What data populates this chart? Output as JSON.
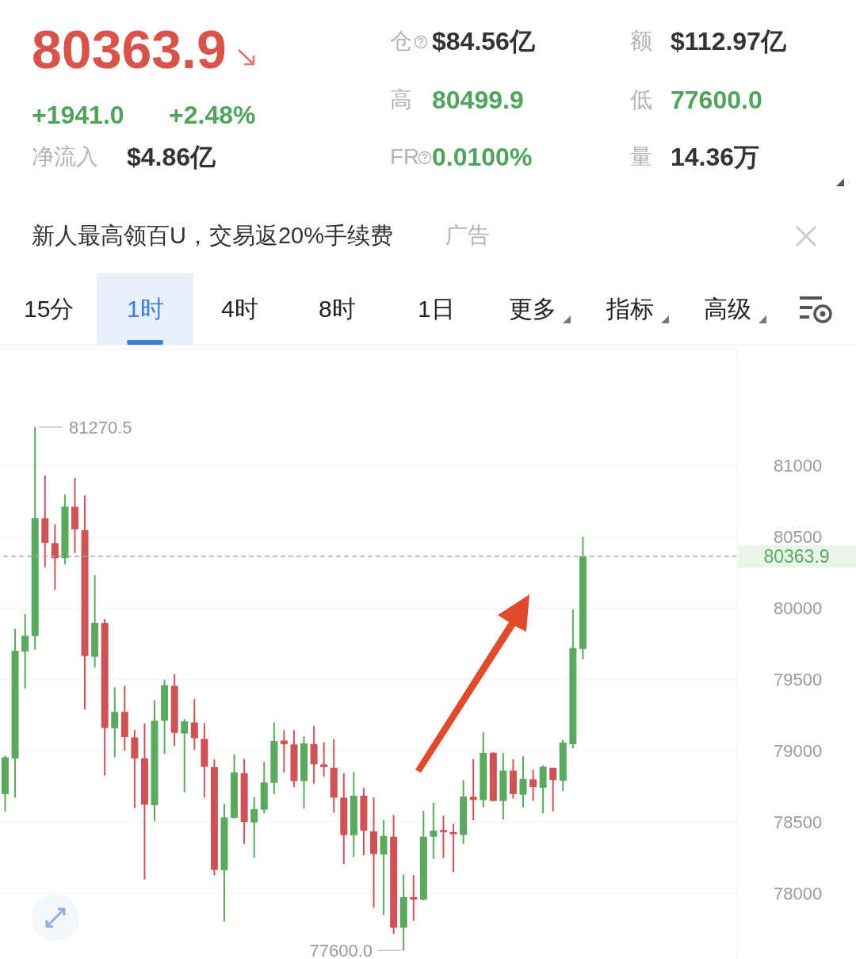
{
  "chart_data": {
    "type": "candlestick",
    "title": "80363.9",
    "annotations": [
      "+1941.0",
      "+2.48%",
      "净流入",
      "$4.86亿",
      "仓",
      "$84.56亿",
      "额",
      "$112.97亿",
      "高",
      "80499.9",
      "低",
      "77600.0",
      "FR",
      "0.0100%",
      "量",
      "14.36万",
      "新人最高领百U，交易返20%手续费",
      "广告",
      "15分",
      "1时",
      "4时",
      "8时",
      "1日",
      "更多",
      "指标",
      "高级",
      "81270.5",
      "77600.0"
    ],
    "categories": [
      null,
      null,
      null,
      null,
      null,
      null,
      null,
      null,
      null,
      null,
      null,
      null,
      null,
      null,
      null,
      null,
      null,
      null,
      null,
      null,
      null,
      null,
      null,
      null,
      null,
      null,
      null,
      null,
      null,
      null,
      null,
      null,
      null,
      null,
      null,
      null,
      null,
      null,
      null,
      null,
      null,
      null,
      null,
      null,
      null,
      null,
      null,
      null,
      null,
      null,
      null,
      null,
      null,
      null,
      null,
      null,
      null,
      null,
      null,
      null,
      null,
      null,
      null,
      null,
      null,
      null,
      null,
      null,
      null,
      null,
      null,
      null,
      null,
      null
    ],
    "ohlc": [
      [
        78697,
        78966,
        78574,
        78954
      ],
      [
        78947,
        79856,
        78672,
        79701
      ],
      [
        79697,
        79959,
        79437,
        79807
      ],
      [
        79804,
        81270.5,
        79709,
        80632
      ],
      [
        80630,
        80931,
        80287,
        80459
      ],
      [
        80456,
        80588,
        80130,
        80351
      ],
      [
        80351,
        80799,
        80307,
        80713
      ],
      [
        80711,
        80914,
        80387,
        80554
      ],
      [
        80547,
        80792,
        79290,
        79665
      ],
      [
        79660,
        80233,
        79584,
        79897
      ],
      [
        79897,
        79922,
        78827,
        79160
      ],
      [
        79158,
        79444,
        78954,
        79273
      ],
      [
        79273,
        79456,
        79003,
        79096
      ],
      [
        79094,
        79145,
        78599,
        78947
      ],
      [
        78947,
        79192,
        78097,
        78623
      ],
      [
        78619,
        79354,
        78506,
        79211
      ],
      [
        79211,
        79498,
        78979,
        79461
      ],
      [
        79456,
        79537,
        79035,
        79126
      ],
      [
        79121,
        79224,
        78709,
        79207
      ],
      [
        79199,
        79363,
        79008,
        79089
      ],
      [
        79084,
        79194,
        78672,
        78888
      ],
      [
        78886,
        78940,
        78126,
        78165
      ],
      [
        78163,
        78628,
        77803,
        78533
      ],
      [
        78530,
        78974,
        78525,
        78849
      ],
      [
        78844,
        78942,
        78347,
        78501
      ],
      [
        78498,
        78677,
        78249,
        78592
      ],
      [
        78587,
        78922,
        78562,
        78778
      ],
      [
        78775,
        79199,
        78697,
        79069
      ],
      [
        79072,
        79145,
        78849,
        79047
      ],
      [
        79045,
        79145,
        78746,
        78788
      ],
      [
        78788,
        79101,
        78594,
        79052
      ],
      [
        79047,
        79175,
        78770,
        78905
      ],
      [
        78905,
        79060,
        78820,
        78886
      ],
      [
        78881,
        79082,
        78567,
        78672
      ],
      [
        78672,
        78844,
        78207,
        78410
      ],
      [
        78408,
        78851,
        78256,
        78685
      ],
      [
        78685,
        78741,
        78268,
        78440
      ],
      [
        78435,
        78672,
        77901,
        78276
      ],
      [
        78273,
        78513,
        77847,
        78403
      ],
      [
        78398,
        78550,
        77717,
        77759
      ],
      [
        77759,
        78133,
        77600,
        77974
      ],
      [
        77974,
        78128,
        77808,
        77957
      ],
      [
        77957,
        78579,
        77950,
        78398
      ],
      [
        78398,
        78636,
        78244,
        78440
      ],
      [
        78445,
        78545,
        78249,
        78430
      ],
      [
        78430,
        78489,
        78151,
        78415
      ],
      [
        78410,
        78795,
        78347,
        78680
      ],
      [
        78677,
        78942,
        78513,
        78655
      ],
      [
        78655,
        79133,
        78604,
        78986
      ],
      [
        78986,
        78991,
        78648,
        78648
      ],
      [
        78648,
        78984,
        78518,
        78861
      ],
      [
        78861,
        78942,
        78665,
        78697
      ],
      [
        78692,
        78962,
        78604,
        78802
      ],
      [
        78800,
        78868,
        78648,
        78746
      ],
      [
        78741,
        78898,
        78562,
        78888
      ],
      [
        78881,
        78881,
        78574,
        78795
      ],
      [
        78790,
        79077,
        78717,
        79057
      ],
      [
        79047,
        79991,
        79016,
        79721
      ],
      [
        79714,
        80499.9,
        79640,
        80363.9
      ],
      null,
      null,
      null,
      null,
      null,
      null,
      null,
      null,
      null,
      null,
      null,
      null,
      null,
      null,
      null
    ],
    "colors": [
      "#5aa95f",
      "#5aa95f",
      "#5aa95f",
      "#5aa95f",
      "#cf5257",
      "#cf5257",
      "#5aa95f",
      "#cf5257",
      "#cf5257",
      "#5aa95f",
      "#cf5257",
      "#5aa95f",
      "#cf5257",
      "#cf5257",
      "#cf5257",
      "#5aa95f",
      "#5aa95f",
      "#cf5257",
      "#5aa95f",
      "#cf5257",
      "#cf5257",
      "#cf5257",
      "#5aa95f",
      "#5aa95f",
      "#cf5257",
      "#5aa95f",
      "#5aa95f",
      "#5aa95f",
      "#cf5257",
      "#cf5257",
      "#5aa95f",
      "#cf5257",
      "#cf5257",
      "#cf5257",
      "#cf5257",
      "#5aa95f",
      "#cf5257",
      "#cf5257",
      "#5aa95f",
      "#cf5257",
      "#5aa95f",
      "#cf5257",
      "#5aa95f",
      "#5aa95f",
      "#cf5257",
      "#cf5257",
      "#5aa95f",
      "#cf5257",
      "#5aa95f",
      "#cf5257",
      "#5aa95f",
      "#cf5257",
      "#5aa95f",
      "#cf5257",
      "#5aa95f",
      "#cf5257",
      "#5aa95f",
      "#5aa95f",
      "#5aa95f",
      null,
      null,
      null,
      null,
      null,
      null,
      null,
      null,
      null,
      null,
      null,
      null,
      null,
      null,
      null
    ],
    "ylim": [
      77540,
      81820
    ],
    "yticks": [
      78000,
      78500,
      79000,
      79500,
      80000,
      80500,
      81000
    ],
    "grid": "y",
    "ref_lines": [
      {
        "axis": "y",
        "value": 80363.9,
        "label": "80363.9",
        "color": "#aaaaaa",
        "line_style": "dashed"
      }
    ]
  }
}
